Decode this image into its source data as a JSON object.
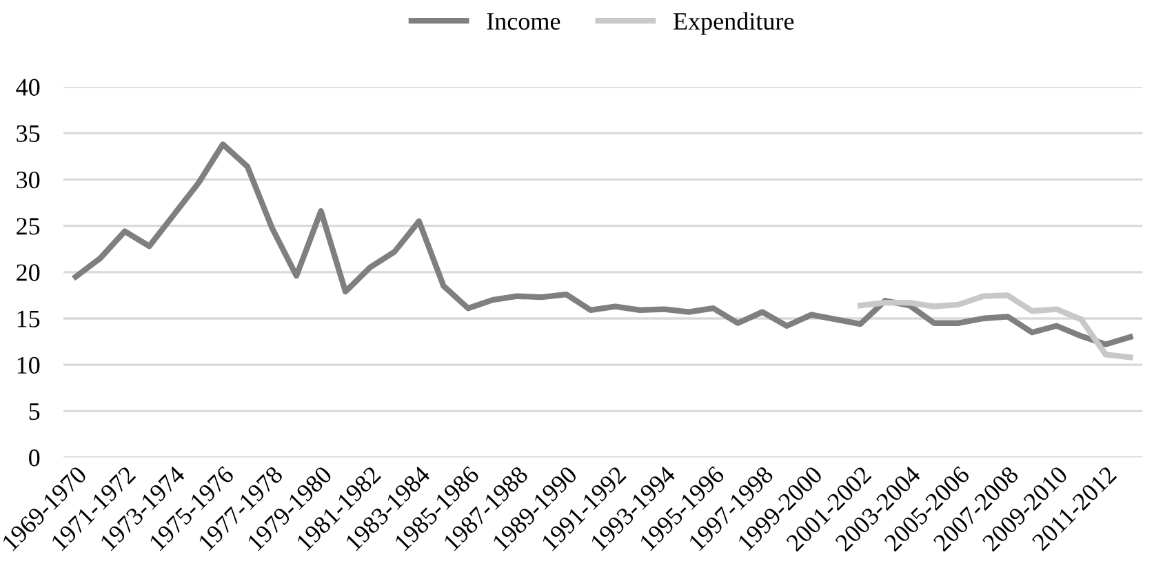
{
  "chart_data": {
    "type": "line",
    "categories": [
      "1969-1970",
      null,
      "1971-1972",
      null,
      "1973-1974",
      null,
      "1975-1976",
      null,
      "1977-1978",
      null,
      "1979-1980",
      null,
      "1981-1982",
      null,
      "1983-1984",
      null,
      "1985-1986",
      null,
      "1987-1988",
      null,
      "1989-1990",
      null,
      "1991-1992",
      null,
      "1993-1994",
      null,
      "1995-1996",
      null,
      "1997-1998",
      null,
      "1999-2000",
      null,
      "2001-2002",
      null,
      "2003-2004",
      null,
      "2005-2006",
      null,
      "2007-2008",
      null,
      "2009-2010",
      null,
      "2011-2012",
      null
    ],
    "series": [
      {
        "name": "Income",
        "color": "#7f7f7f",
        "values": [
          19.5,
          21.5,
          24.4,
          22.8,
          26.2,
          29.6,
          33.8,
          31.4,
          24.8,
          19.6,
          26.6,
          17.9,
          20.5,
          22.2,
          25.5,
          18.5,
          16.1,
          17.0,
          17.4,
          17.3,
          17.6,
          15.9,
          16.3,
          15.9,
          16.0,
          15.7,
          16.1,
          14.5,
          15.7,
          14.2,
          15.4,
          14.9,
          14.4,
          16.9,
          16.4,
          14.5,
          14.5,
          15.0,
          15.2,
          13.5,
          14.2,
          13.1,
          12.2,
          13.0
        ]
      },
      {
        "name": "Expenditure",
        "color": "#c8c8c8",
        "values": [
          null,
          null,
          null,
          null,
          null,
          null,
          null,
          null,
          null,
          null,
          null,
          null,
          null,
          null,
          null,
          null,
          null,
          null,
          null,
          null,
          null,
          null,
          null,
          null,
          null,
          null,
          null,
          null,
          null,
          null,
          null,
          null,
          16.4,
          16.7,
          16.7,
          16.3,
          16.5,
          17.4,
          17.5,
          15.8,
          16.0,
          14.9,
          11.1,
          10.8
        ]
      }
    ],
    "ylim": [
      0,
      40
    ],
    "yticks": [
      0,
      5,
      10,
      15,
      20,
      25,
      30,
      35,
      40
    ],
    "grid": "y",
    "legend": "top",
    "marker": "none",
    "line_style": "solid"
  }
}
